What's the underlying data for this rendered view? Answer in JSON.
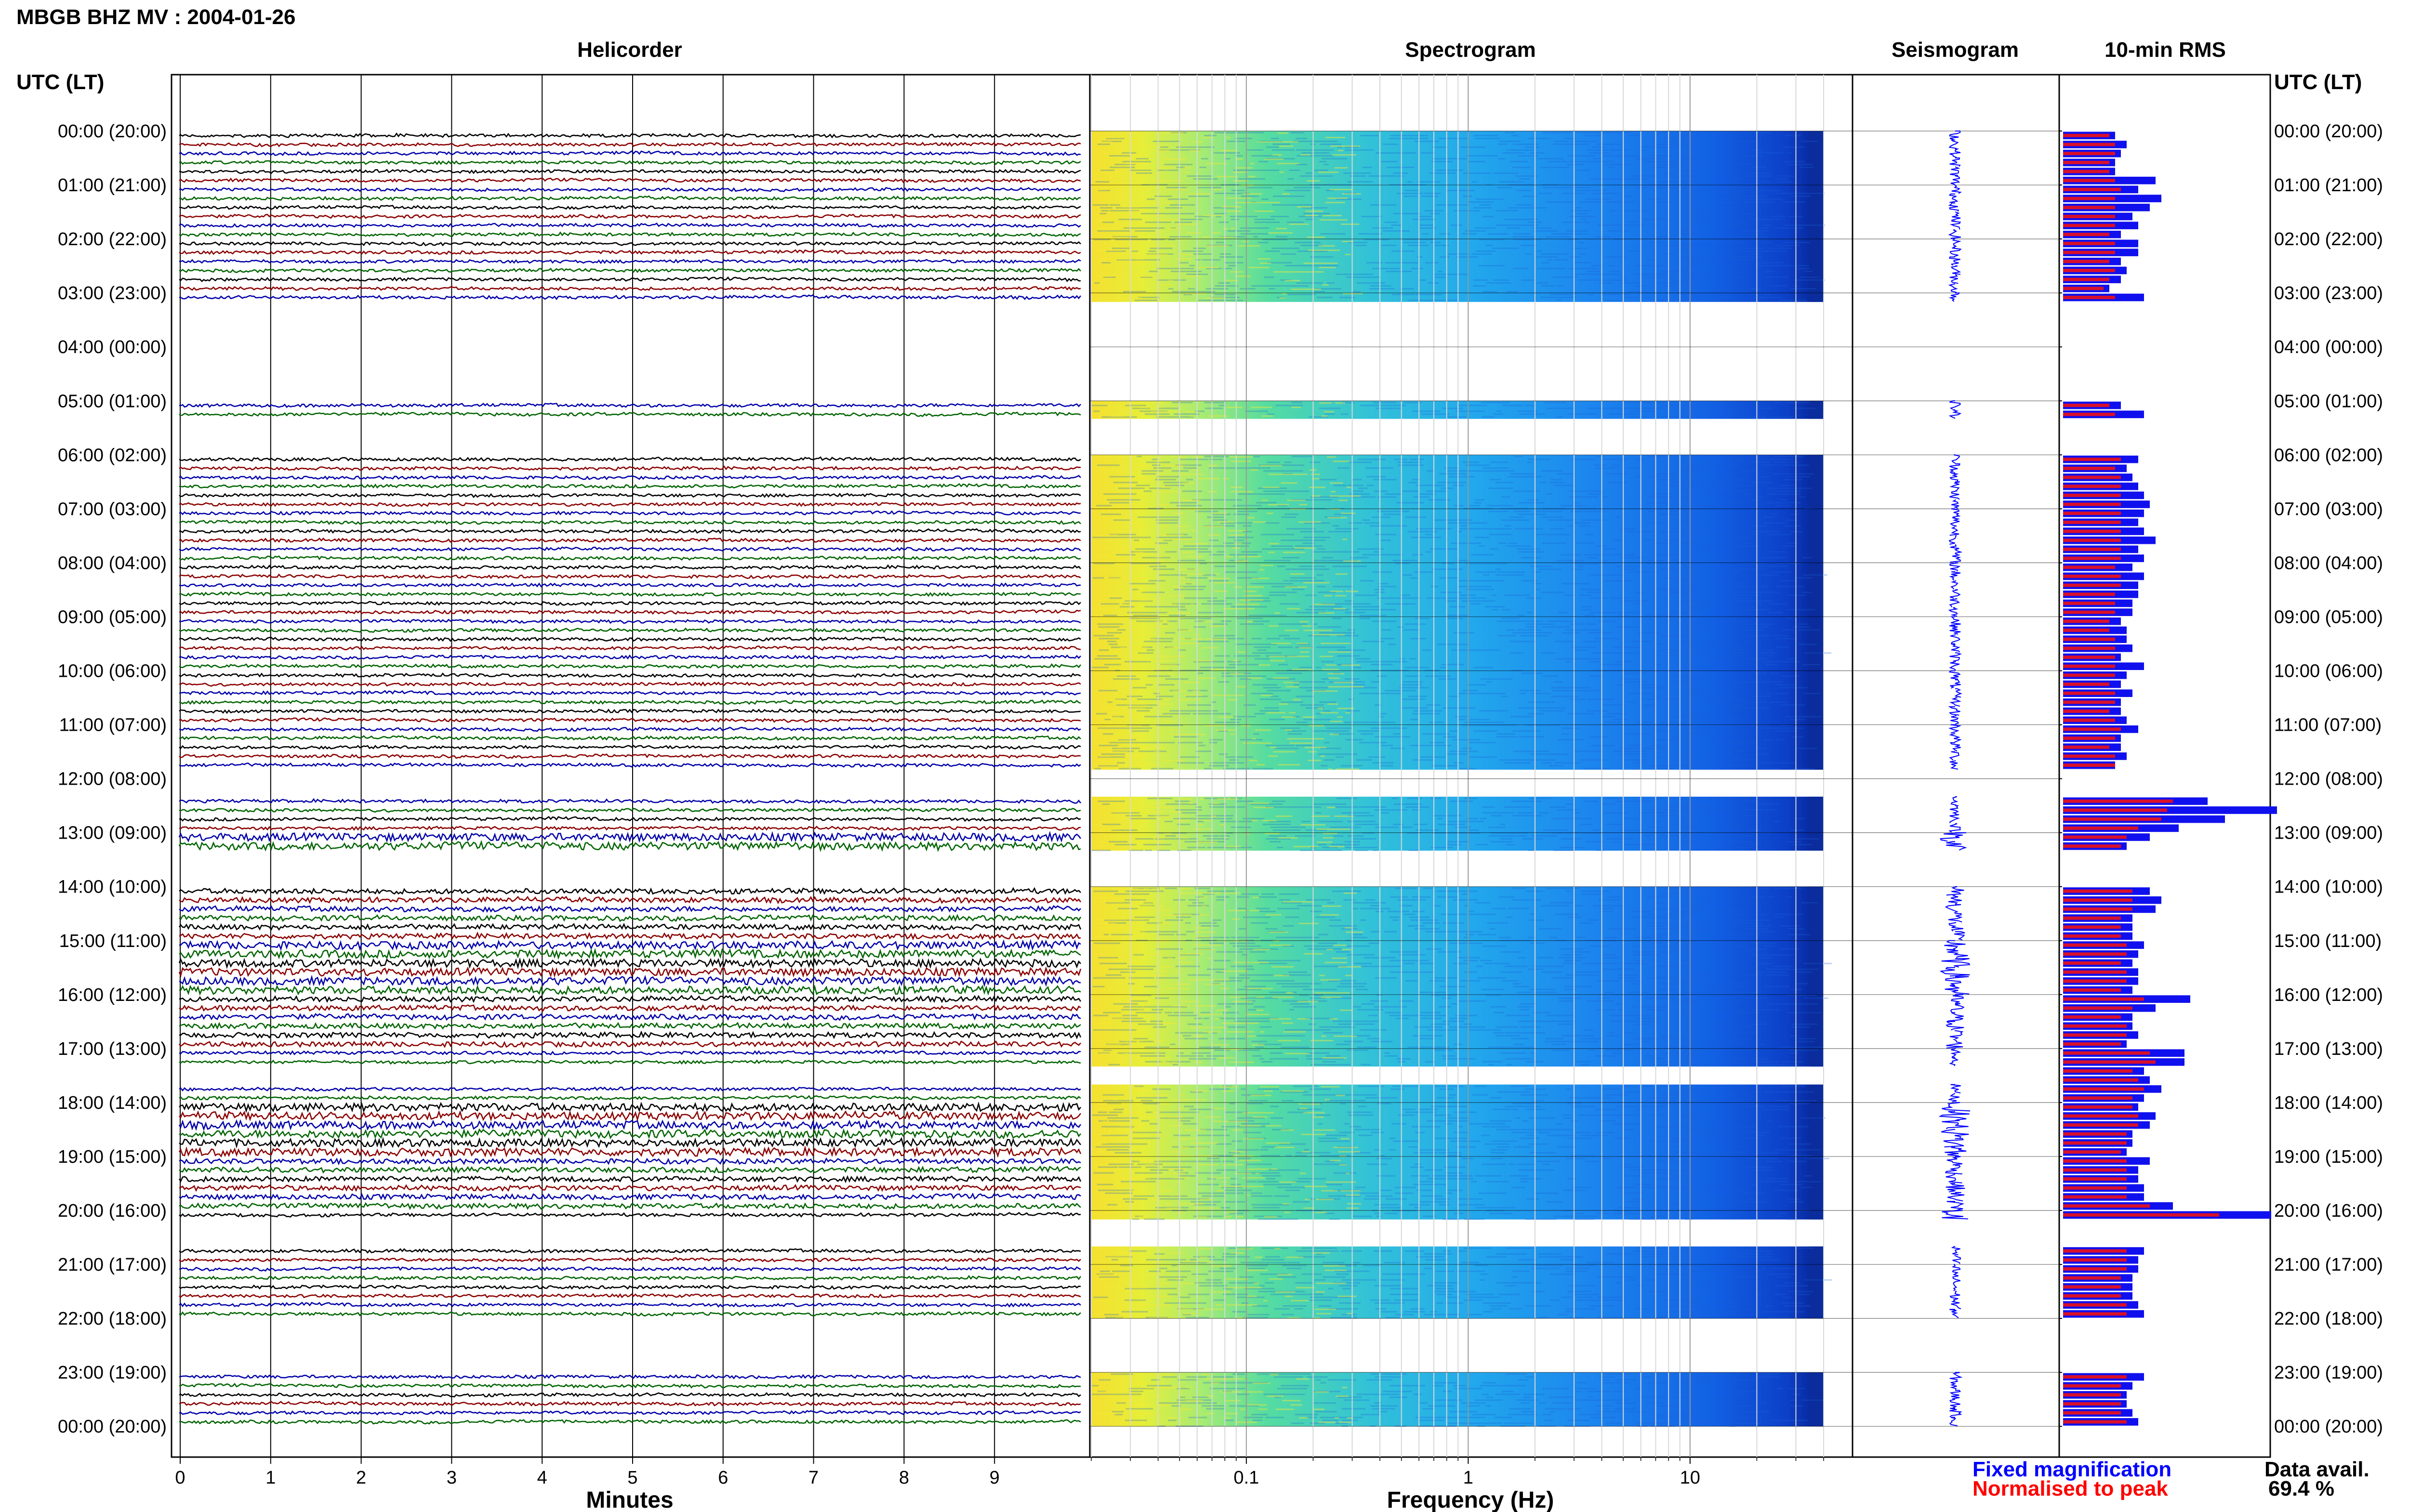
{
  "header": {
    "title": "MBGB BHZ MV : 2004-01-26"
  },
  "panels": {
    "helicorder": "Helicorder",
    "spectrogram": "Spectrogram",
    "seismogram": "Seismogram",
    "rms": "10-min RMS"
  },
  "time_axis_label": "UTC (LT)",
  "x_labels": {
    "minutes": "Minutes",
    "frequency": "Frequency (Hz)"
  },
  "legend": {
    "fixed": "Fixed magnification",
    "normalised": "Normalised to peak",
    "fixed_color": "#0000ff",
    "normalised_color": "#ff0000"
  },
  "availability": {
    "label": "Data avail.",
    "value": "69.4 %"
  },
  "colors": {
    "trace_cycle": [
      "#000000",
      "#8b0000",
      "#0000aa",
      "#006400"
    ],
    "rms_fixed": "#1010ee",
    "rms_norm": "#d8102a",
    "seismogram": "#0000ff"
  },
  "chart_data": {
    "type": "heatmap",
    "hour_labels": [
      "00:00 (20:00)",
      "01:00 (21:00)",
      "02:00 (22:00)",
      "03:00 (23:00)",
      "04:00 (00:00)",
      "05:00 (01:00)",
      "06:00 (02:00)",
      "07:00 (03:00)",
      "08:00 (04:00)",
      "09:00 (05:00)",
      "10:00 (06:00)",
      "11:00 (07:00)",
      "12:00 (08:00)",
      "13:00 (09:00)",
      "14:00 (10:00)",
      "15:00 (11:00)",
      "16:00 (12:00)",
      "17:00 (13:00)",
      "18:00 (14:00)",
      "19:00 (15:00)",
      "20:00 (16:00)",
      "21:00 (17:00)",
      "22:00 (18:00)",
      "23:00 (19:00)",
      "00:00 (20:00)"
    ],
    "minutes_ticks": [
      "0",
      "1",
      "2",
      "3",
      "4",
      "5",
      "6",
      "7",
      "8",
      "9"
    ],
    "minutes_range": [
      0,
      10
    ],
    "frequency_ticks": [
      "0.1",
      "1",
      "10"
    ],
    "frequency_range": [
      0.02,
      40
    ],
    "frequency_scale": "log",
    "segments_present": [
      true,
      true,
      true,
      true,
      true,
      true,
      true,
      true,
      true,
      true,
      true,
      true,
      true,
      true,
      true,
      true,
      true,
      true,
      true,
      false,
      false,
      false,
      false,
      false,
      false,
      false,
      false,
      false,
      false,
      false,
      true,
      true,
      false,
      false,
      false,
      false,
      true,
      true,
      true,
      true,
      true,
      true,
      true,
      true,
      true,
      true,
      true,
      true,
      true,
      true,
      true,
      true,
      true,
      true,
      true,
      true,
      true,
      true,
      true,
      true,
      true,
      true,
      true,
      true,
      true,
      true,
      true,
      true,
      true,
      true,
      true,
      false,
      false,
      false,
      true,
      true,
      true,
      true,
      true,
      true,
      false,
      false,
      false,
      false,
      true,
      true,
      true,
      true,
      true,
      true,
      true,
      true,
      true,
      true,
      true,
      true,
      true,
      true,
      true,
      true,
      true,
      true,
      true,
      true,
      false,
      false,
      true,
      true,
      true,
      true,
      true,
      true,
      true,
      true,
      true,
      true,
      true,
      true,
      true,
      true,
      true,
      false,
      false,
      false,
      true,
      true,
      true,
      true,
      true,
      true,
      true,
      true,
      false,
      false,
      false,
      false,
      false,
      false,
      true,
      true,
      true,
      true,
      true,
      true
    ],
    "rms_fixed": [
      9,
      11,
      10,
      9,
      9,
      16,
      13,
      17,
      15,
      12,
      13,
      10,
      13,
      13,
      10,
      11,
      10,
      8,
      14,
      0,
      0,
      0,
      0,
      0,
      0,
      0,
      0,
      0,
      0,
      0,
      10,
      14,
      0,
      0,
      0,
      0,
      13,
      11,
      12,
      13,
      14,
      15,
      14,
      13,
      14,
      16,
      13,
      14,
      12,
      14,
      13,
      13,
      12,
      12,
      10,
      11,
      11,
      12,
      10,
      14,
      11,
      10,
      12,
      10,
      10,
      11,
      13,
      10,
      10,
      11,
      9,
      0,
      0,
      0,
      25,
      37,
      28,
      20,
      15,
      11,
      0,
      0,
      0,
      0,
      15,
      17,
      16,
      12,
      12,
      12,
      14,
      13,
      12,
      13,
      13,
      12,
      22,
      16,
      12,
      12,
      13,
      11,
      21,
      21,
      14,
      15,
      17,
      14,
      13,
      16,
      15,
      12,
      12,
      11,
      15,
      13,
      13,
      14,
      14,
      19,
      36,
      0,
      0,
      0,
      14,
      13,
      13,
      12,
      12,
      12,
      13,
      14,
      0,
      0,
      0,
      0,
      0,
      0,
      14,
      12,
      11,
      11,
      12,
      13
    ],
    "rms_normalised": [
      8,
      9,
      9,
      8,
      8,
      9,
      10,
      9,
      9,
      9,
      9,
      8,
      9,
      9,
      8,
      9,
      8,
      7,
      9,
      0,
      0,
      0,
      0,
      0,
      0,
      0,
      0,
      0,
      0,
      0,
      8,
      9,
      0,
      0,
      0,
      0,
      10,
      9,
      10,
      10,
      10,
      10,
      10,
      10,
      10,
      10,
      10,
      10,
      9,
      10,
      10,
      9,
      9,
      9,
      8,
      8,
      9,
      9,
      9,
      9,
      9,
      8,
      9,
      9,
      8,
      9,
      10,
      9,
      8,
      9,
      9,
      0,
      0,
      0,
      19,
      18,
      17,
      13,
      11,
      10,
      0,
      0,
      0,
      0,
      12,
      12,
      12,
      10,
      10,
      10,
      11,
      11,
      10,
      11,
      11,
      10,
      14,
      12,
      10,
      11,
      11,
      10,
      15,
      16,
      12,
      13,
      14,
      12,
      12,
      13,
      13,
      11,
      11,
      10,
      11,
      11,
      11,
      11,
      11,
      15,
      27,
      0,
      0,
      0,
      11,
      11,
      11,
      10,
      10,
      10,
      11,
      11,
      0,
      0,
      0,
      0,
      0,
      0,
      11,
      10,
      10,
      10,
      10,
      11
    ]
  }
}
